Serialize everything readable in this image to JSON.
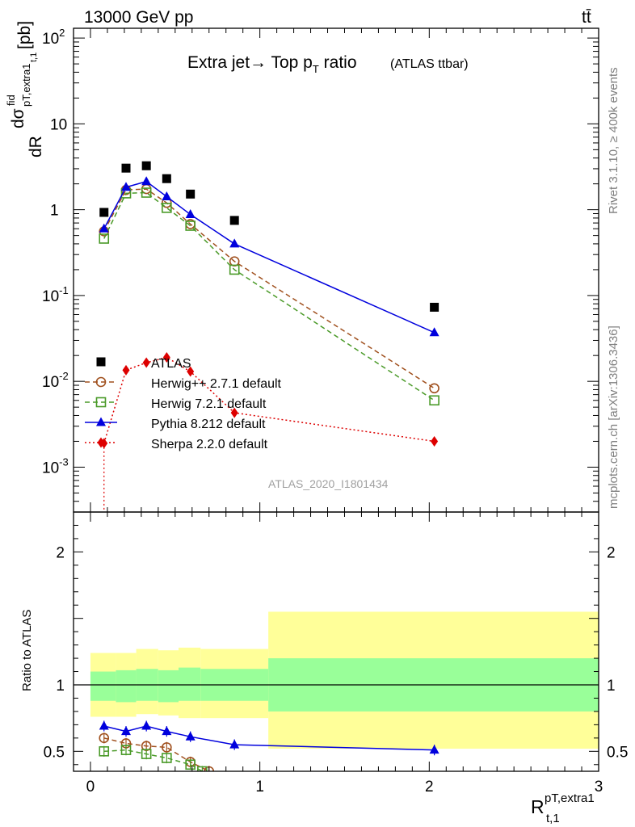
{
  "header": {
    "energy": "13000 GeV pp",
    "process": "tt̄",
    "title_main": "Extra jet→ Top p",
    "title_sub": "T",
    "title_tail": " ratio",
    "title_small": "(ATLAS ttbar)"
  },
  "side": {
    "rivet": "Rivet 3.1.10, ≥ 400k events",
    "mcplots": "mcplots.cern.ch [arXiv:1306.3436]"
  },
  "watermark": "ATLAS_2020_I1801434",
  "axes": {
    "ylabel_top": "dσ / dR [pb]",
    "ylabel_top_num": "dσ",
    "ylabel_top_fid": "fid",
    "ylabel_top_sub": "pT,extra1",
    "ylabel_top_sub2": "t,1",
    "ylabel_top_den": "dR",
    "ylabel_top_unit": "[pb]",
    "ylabel_ratio": "Ratio to ATLAS",
    "xlabel_main": "R",
    "xlabel_sup": "pT,extra1",
    "xlabel_sub": "t,1"
  },
  "chart_data": {
    "type": "line",
    "xlim": [
      -0.1,
      3.0
    ],
    "ylim_main": [
      0.0003,
      130
    ],
    "ylim_ratio": [
      0.35,
      2.3
    ],
    "x_ticks": [
      "0",
      "1",
      "2",
      "3"
    ],
    "x_tick_values": [
      0,
      1,
      2,
      3
    ],
    "y_ticks_main": [
      {
        "value": 0.001,
        "base": "10",
        "exp": "-3"
      },
      {
        "value": 0.01,
        "base": "10",
        "exp": "-2"
      },
      {
        "value": 0.1,
        "base": "10",
        "exp": "-1"
      },
      {
        "value": 1,
        "base": "1",
        "exp": ""
      },
      {
        "value": 10,
        "base": "10",
        "exp": ""
      },
      {
        "value": 100,
        "base": "10",
        "exp": "2"
      }
    ],
    "y_ticks_ratio": [
      "0.5",
      "1",
      "2"
    ],
    "y_tick_ratio_values": [
      0.5,
      1,
      2
    ],
    "bins": [
      0.0,
      0.15,
      0.27,
      0.4,
      0.52,
      0.65,
      1.05,
      3.0
    ],
    "band_inner": [
      [
        0.88,
        1.1
      ],
      [
        0.87,
        1.11
      ],
      [
        0.88,
        1.12
      ],
      [
        0.87,
        1.11
      ],
      [
        0.88,
        1.13
      ],
      [
        0.88,
        1.12
      ],
      [
        0.8,
        1.2
      ]
    ],
    "band_outer": [
      [
        0.76,
        1.24
      ],
      [
        0.76,
        1.24
      ],
      [
        0.78,
        1.27
      ],
      [
        0.77,
        1.26
      ],
      [
        0.75,
        1.28
      ],
      [
        0.75,
        1.27
      ],
      [
        0.52,
        1.55
      ]
    ],
    "series": [
      {
        "name": "ATLAS",
        "label": "ATLAS",
        "color": "#000000",
        "marker": "square-filled",
        "line": "none",
        "points": [
          [
            0.08,
            0.93
          ],
          [
            0.21,
            3.05
          ],
          [
            0.33,
            3.25
          ],
          [
            0.45,
            2.3
          ],
          [
            0.59,
            1.52
          ],
          [
            0.85,
            0.75
          ],
          [
            2.03,
            0.073
          ]
        ]
      },
      {
        "name": "Herwig++",
        "label": "Herwig++ 2.7.1 default",
        "color": "#a0501e",
        "marker": "circle-open",
        "line": "dashed",
        "points": [
          [
            0.08,
            0.56
          ],
          [
            0.21,
            1.7
          ],
          [
            0.33,
            1.74
          ],
          [
            0.45,
            1.2
          ],
          [
            0.59,
            0.68
          ],
          [
            0.85,
            0.25
          ],
          [
            2.03,
            0.0083
          ]
        ],
        "ratio": [
          [
            0.08,
            0.6
          ],
          [
            0.21,
            0.56
          ],
          [
            0.33,
            0.54
          ],
          [
            0.45,
            0.53
          ],
          [
            0.59,
            0.42
          ],
          [
            0.7,
            0.35
          ]
        ]
      },
      {
        "name": "Herwig7",
        "label": "Herwig 7.2.1 default",
        "color": "#4a9a28",
        "marker": "square-open",
        "line": "dashed",
        "points": [
          [
            0.08,
            0.46
          ],
          [
            0.21,
            1.55
          ],
          [
            0.33,
            1.58
          ],
          [
            0.45,
            1.05
          ],
          [
            0.59,
            0.65
          ],
          [
            0.85,
            0.2
          ],
          [
            2.03,
            0.006
          ]
        ],
        "ratio": [
          [
            0.08,
            0.5
          ],
          [
            0.21,
            0.51
          ],
          [
            0.33,
            0.48
          ],
          [
            0.45,
            0.45
          ],
          [
            0.59,
            0.4
          ],
          [
            0.66,
            0.35
          ]
        ]
      },
      {
        "name": "Pythia",
        "label": "Pythia 8.212 default",
        "color": "#0000dd",
        "marker": "triangle-filled",
        "line": "solid",
        "points": [
          [
            0.08,
            0.6
          ],
          [
            0.21,
            1.83
          ],
          [
            0.33,
            2.13
          ],
          [
            0.45,
            1.42
          ],
          [
            0.59,
            0.88
          ],
          [
            0.85,
            0.4
          ],
          [
            2.03,
            0.037
          ]
        ],
        "ratio": [
          [
            0.08,
            0.69
          ],
          [
            0.21,
            0.65
          ],
          [
            0.33,
            0.69
          ],
          [
            0.45,
            0.65
          ],
          [
            0.59,
            0.61
          ],
          [
            0.85,
            0.55
          ],
          [
            2.03,
            0.51
          ]
        ]
      },
      {
        "name": "Sherpa",
        "label": "Sherpa 2.2.0 default",
        "color": "#dd0000",
        "marker": "diamond-filled",
        "line": "dotted",
        "points": [
          [
            0.08,
            0.0019
          ],
          [
            0.21,
            0.0135
          ],
          [
            0.33,
            0.0165
          ],
          [
            0.45,
            0.019
          ],
          [
            0.59,
            0.013
          ],
          [
            0.85,
            0.0043
          ],
          [
            2.03,
            0.002
          ]
        ]
      }
    ]
  }
}
